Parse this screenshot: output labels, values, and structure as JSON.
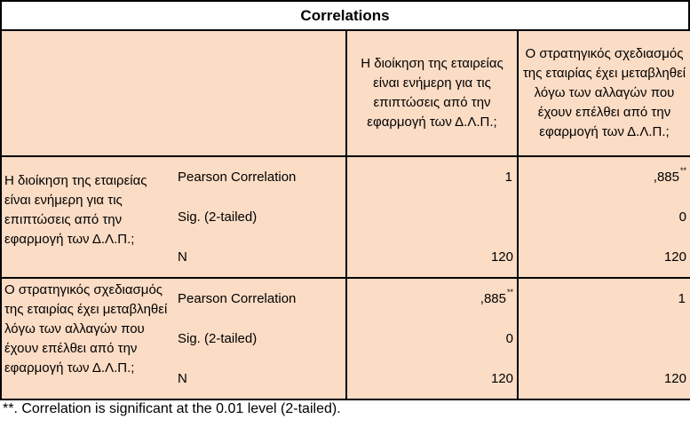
{
  "table": {
    "title": "Correlations",
    "columns": [
      "Η διοίκηση της εταιρείας είναι ενήμερη για τις επιπτώσεις από την εφαρμογή των Δ.Λ.Π.;",
      "Ο στρατηγικός σχεδιασμός της εταιρίας έχει μεταβληθεί λόγω των αλλαγών που έχουν επέλθει από την εφαρμογή των Δ.Λ.Π.;"
    ],
    "rows": [
      {
        "label": "Η διοίκηση της εταιρείας είναι ενήμερη για τις επιπτώσεις από την εφαρμογή των Δ.Λ.Π.;",
        "stats": [
          "Pearson Correlation",
          "Sig. (2-tailed)",
          "N"
        ],
        "col1": [
          "1",
          "",
          "120"
        ],
        "col1_mark": "",
        "col2": [
          ",885",
          "0",
          "120"
        ],
        "col2_mark": "**"
      },
      {
        "label": "Ο στρατηγικός σχεδιασμός της εταιρίας έχει μεταβληθεί λόγω των αλλαγών που έχουν επέλθει από την εφαρμογή των Δ.Λ.Π.;",
        "stats": [
          "Pearson Correlation",
          "Sig. (2-tailed)",
          "N"
        ],
        "col1": [
          ",885",
          "0",
          "120"
        ],
        "col1_mark": "**",
        "col2": [
          "1",
          "",
          "120"
        ],
        "col2_mark": ""
      }
    ],
    "footnote": "**. Correlation is significant at the 0.01 level (2-tailed)."
  },
  "colors": {
    "header_bg": "#fbc99f",
    "cell_bg": "#fbdcc5",
    "border": "#000000"
  }
}
